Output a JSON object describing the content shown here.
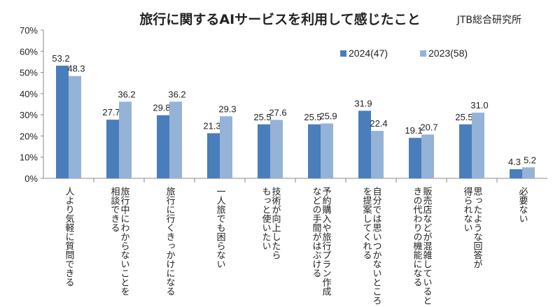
{
  "chart_data": {
    "type": "bar",
    "title": "旅行に関するAIサービスを利用して感じたこと",
    "source": "JTB総合研究所",
    "ylim": [
      0,
      70
    ],
    "yticks": [
      "0%",
      "10%",
      "20%",
      "30%",
      "40%",
      "50%",
      "60%",
      "70%"
    ],
    "legend_position": "top-right",
    "categories": [
      [
        "人より気軽に質問できる"
      ],
      [
        "旅行中にわからないことを",
        "相談できる"
      ],
      [
        "旅行に行くきっかけになる"
      ],
      [
        "一人旅でも困らない"
      ],
      [
        "技術が向上したら",
        "もっと使いたい"
      ],
      [
        "予約購入や旅行プラン作成",
        "などの手間がはぶける"
      ],
      [
        "自分では思いつかないところ",
        "を提案してくれる"
      ],
      [
        "販売店などが混雑していると",
        "きの代わりの機能になる"
      ],
      [
        "思ったような回答が",
        "得られない"
      ],
      [
        "必要ない"
      ]
    ],
    "series": [
      {
        "name": "2024(47)",
        "color": "#4a7ebb",
        "values": [
          53.2,
          27.7,
          29.8,
          21.3,
          25.5,
          25.5,
          31.9,
          19.1,
          25.5,
          4.3
        ],
        "labels": [
          "53.2",
          "27.7",
          "29.8",
          "21.3",
          "25.5",
          "25.5",
          "31.9",
          "19.1",
          "25.5",
          "4.3"
        ]
      },
      {
        "name": "2023(58)",
        "color": "#95b3d7",
        "values": [
          48.3,
          36.2,
          36.2,
          29.3,
          27.6,
          25.9,
          22.4,
          20.7,
          31.0,
          5.2
        ],
        "labels": [
          "48.3",
          "36.2",
          "36.2",
          "29.3",
          "27.6",
          "25.9",
          "22.4",
          "20.7",
          "31.0",
          "5.2"
        ]
      }
    ]
  }
}
